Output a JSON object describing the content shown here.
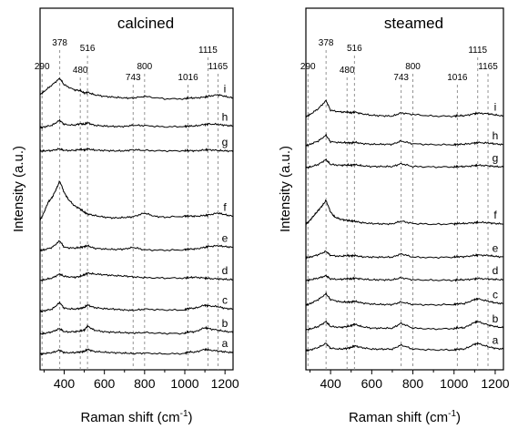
{
  "chart_data": [
    {
      "type": "line",
      "title": "calcined",
      "xlabel": "Raman shift (cm-1)",
      "ylabel": "Intensity (a.u.)",
      "xlim": [
        280,
        1240
      ],
      "x_ticks": [
        400,
        600,
        800,
        1000,
        1200
      ],
      "y_ticks": [],
      "grid": false,
      "legend": "none",
      "reference_lines": [
        {
          "x": 290,
          "label": "290"
        },
        {
          "x": 378,
          "label": "378"
        },
        {
          "x": 480,
          "label": "480"
        },
        {
          "x": 516,
          "label": "516"
        },
        {
          "x": 743,
          "label": "743"
        },
        {
          "x": 800,
          "label": "800"
        },
        {
          "x": 1016,
          "label": "1016"
        },
        {
          "x": 1115,
          "label": "1115"
        },
        {
          "x": 1165,
          "label": "1165"
        }
      ],
      "series": [
        {
          "name": "a",
          "offset": 0.0,
          "scale": 1.0,
          "x": [
            280,
            300,
            340,
            378,
            400,
            450,
            480,
            500,
            516,
            550,
            600,
            650,
            700,
            743,
            800,
            900,
            1000,
            1016,
            1050,
            1100,
            1115,
            1165,
            1200,
            1240
          ],
          "y": [
            0.0,
            0.1,
            0.2,
            0.5,
            0.2,
            0.2,
            0.3,
            0.35,
            0.6,
            0.35,
            0.25,
            0.2,
            0.15,
            0.1,
            0.15,
            0.05,
            0.1,
            0.3,
            0.25,
            0.6,
            0.55,
            0.4,
            0.3,
            0.2
          ]
        },
        {
          "name": "b",
          "offset": 1.0,
          "scale": 1.0,
          "x": [
            280,
            300,
            340,
            378,
            400,
            450,
            480,
            500,
            516,
            550,
            600,
            650,
            700,
            743,
            800,
            900,
            1000,
            1016,
            1050,
            1100,
            1115,
            1165,
            1200,
            1240
          ],
          "y": [
            0.0,
            0.1,
            0.3,
            0.7,
            0.3,
            0.3,
            0.4,
            0.5,
            1.0,
            0.5,
            0.3,
            0.25,
            0.2,
            0.15,
            0.2,
            0.1,
            0.1,
            0.3,
            0.3,
            0.8,
            0.7,
            0.5,
            0.35,
            0.25
          ]
        },
        {
          "name": "c",
          "offset": 2.0,
          "scale": 1.0,
          "x": [
            280,
            300,
            340,
            378,
            400,
            450,
            480,
            500,
            516,
            550,
            600,
            650,
            700,
            743,
            800,
            900,
            1000,
            1016,
            1050,
            1100,
            1115,
            1165,
            1200,
            1240
          ],
          "y": [
            0.1,
            0.2,
            0.4,
            1.2,
            0.5,
            0.4,
            0.5,
            0.6,
            0.9,
            0.6,
            0.45,
            0.4,
            0.3,
            0.25,
            0.4,
            0.3,
            0.3,
            0.5,
            0.5,
            0.9,
            0.8,
            0.7,
            0.5,
            0.4
          ]
        },
        {
          "name": "d",
          "offset": 3.0,
          "scale": 1.0,
          "x": [
            280,
            300,
            340,
            378,
            400,
            450,
            480,
            500,
            516,
            550,
            600,
            650,
            700,
            743,
            800,
            900,
            1000,
            1016,
            1050,
            1100,
            1115,
            1165,
            1200,
            1240
          ],
          "y": [
            0.0,
            0.1,
            0.3,
            0.8,
            0.5,
            0.4,
            0.5,
            0.7,
            0.9,
            0.8,
            0.7,
            0.6,
            0.55,
            0.45,
            0.35,
            0.3,
            0.3,
            0.35,
            0.4,
            0.3,
            0.25,
            0.2,
            0.15,
            0.1
          ]
        },
        {
          "name": "e",
          "offset": 4.0,
          "scale": 1.0,
          "x": [
            280,
            300,
            340,
            378,
            400,
            450,
            480,
            500,
            516,
            550,
            600,
            650,
            700,
            743,
            800,
            900,
            1000,
            1016,
            1050,
            1100,
            1115,
            1165,
            1200,
            1240
          ],
          "y": [
            0.2,
            0.3,
            0.6,
            1.4,
            0.6,
            0.5,
            0.6,
            0.7,
            0.8,
            0.5,
            0.4,
            0.35,
            0.4,
            0.6,
            0.3,
            0.25,
            0.3,
            0.4,
            0.4,
            0.6,
            0.7,
            0.8,
            0.7,
            0.6
          ]
        },
        {
          "name": "f",
          "offset": 5.3,
          "scale": 1.0,
          "x": [
            280,
            300,
            320,
            340,
            360,
            378,
            400,
            420,
            450,
            480,
            500,
            516,
            550,
            600,
            650,
            700,
            743,
            800,
            850,
            900,
            1000,
            1016,
            1050,
            1100,
            1115,
            1165,
            1200,
            1240
          ],
          "y": [
            0.0,
            1.0,
            2.2,
            2.8,
            3.8,
            4.8,
            3.4,
            2.6,
            1.8,
            1.4,
            1.0,
            0.8,
            0.6,
            0.4,
            0.3,
            0.35,
            0.45,
            0.9,
            0.5,
            0.4,
            0.5,
            0.55,
            0.5,
            0.6,
            0.65,
            0.9,
            0.7,
            0.5
          ]
        },
        {
          "name": "g",
          "offset": 9.2,
          "scale": 1.0,
          "x": [
            280,
            300,
            340,
            378,
            400,
            450,
            480,
            500,
            516,
            550,
            600,
            650,
            700,
            743,
            800,
            900,
            1000,
            1016,
            1050,
            1100,
            1115,
            1165,
            1200,
            1240
          ],
          "y": [
            0.1,
            0.15,
            0.2,
            0.4,
            0.2,
            0.2,
            0.35,
            0.25,
            0.4,
            0.25,
            0.2,
            0.15,
            0.15,
            0.3,
            0.2,
            0.15,
            0.15,
            0.2,
            0.15,
            0.25,
            0.3,
            0.2,
            0.15,
            0.1
          ]
        },
        {
          "name": "h",
          "offset": 10.1,
          "scale": 1.0,
          "x": [
            280,
            300,
            340,
            378,
            400,
            450,
            480,
            500,
            516,
            550,
            600,
            650,
            700,
            743,
            800,
            900,
            1000,
            1016,
            1050,
            1100,
            1115,
            1165,
            1200,
            1240
          ],
          "y": [
            0.2,
            0.3,
            0.5,
            1.1,
            0.6,
            0.5,
            0.7,
            0.6,
            0.8,
            0.5,
            0.4,
            0.35,
            0.35,
            0.5,
            0.45,
            0.3,
            0.35,
            0.4,
            0.4,
            0.6,
            0.65,
            0.6,
            0.5,
            0.4
          ]
        },
        {
          "name": "i",
          "offset": 11.4,
          "scale": 1.0,
          "x": [
            280,
            300,
            340,
            378,
            400,
            450,
            480,
            500,
            516,
            550,
            600,
            650,
            700,
            743,
            800,
            900,
            1000,
            1016,
            1050,
            1100,
            1115,
            1165,
            1200,
            1240
          ],
          "y": [
            1.0,
            1.4,
            2.2,
            3.0,
            2.2,
            1.6,
            1.5,
            1.2,
            1.3,
            1.0,
            0.8,
            0.7,
            0.6,
            0.6,
            0.8,
            0.5,
            0.5,
            0.6,
            0.6,
            0.7,
            0.8,
            1.0,
            0.8,
            0.6
          ]
        }
      ]
    },
    {
      "type": "line",
      "title": "steamed",
      "xlabel": "Raman shift (cm-1)",
      "ylabel": "Intensity (a.u.)",
      "xlim": [
        280,
        1240
      ],
      "x_ticks": [
        400,
        600,
        800,
        1000,
        1200
      ],
      "y_ticks": [],
      "grid": false,
      "legend": "none",
      "reference_lines": [
        {
          "x": 290,
          "label": "290"
        },
        {
          "x": 378,
          "label": "378"
        },
        {
          "x": 480,
          "label": "480"
        },
        {
          "x": 516,
          "label": "516"
        },
        {
          "x": 743,
          "label": "743"
        },
        {
          "x": 800,
          "label": "800"
        },
        {
          "x": 1016,
          "label": "1016"
        },
        {
          "x": 1115,
          "label": "1115"
        },
        {
          "x": 1165,
          "label": "1165"
        }
      ],
      "series": [
        {
          "name": "a",
          "offset": 0.0,
          "scale": 1.0,
          "x": [
            280,
            300,
            340,
            378,
            400,
            450,
            480,
            500,
            516,
            550,
            600,
            650,
            700,
            743,
            800,
            900,
            1000,
            1016,
            1050,
            1100,
            1115,
            1165,
            1200,
            1240
          ],
          "y": [
            0.1,
            0.2,
            0.5,
            1.0,
            0.4,
            0.3,
            0.4,
            0.5,
            0.7,
            0.5,
            0.3,
            0.3,
            0.3,
            0.8,
            0.3,
            0.2,
            0.2,
            0.3,
            0.3,
            0.9,
            1.0,
            0.6,
            0.4,
            0.3
          ]
        },
        {
          "name": "b",
          "offset": 1.0,
          "scale": 1.0,
          "x": [
            280,
            300,
            340,
            378,
            400,
            450,
            480,
            500,
            516,
            550,
            600,
            650,
            700,
            743,
            800,
            900,
            1000,
            1016,
            1050,
            1100,
            1115,
            1165,
            1200,
            1240
          ],
          "y": [
            0.1,
            0.2,
            0.5,
            1.1,
            0.5,
            0.4,
            0.5,
            0.6,
            0.8,
            0.5,
            0.3,
            0.3,
            0.3,
            0.9,
            0.3,
            0.2,
            0.25,
            0.35,
            0.35,
            1.0,
            1.1,
            0.7,
            0.5,
            0.35
          ]
        },
        {
          "name": "c",
          "offset": 2.0,
          "scale": 1.0,
          "x": [
            280,
            300,
            340,
            378,
            400,
            450,
            480,
            500,
            516,
            550,
            600,
            650,
            700,
            743,
            800,
            900,
            1000,
            1016,
            1050,
            1100,
            1115,
            1165,
            1200,
            1240
          ],
          "y": [
            0.2,
            0.4,
            0.9,
            1.6,
            0.9,
            0.6,
            0.6,
            0.6,
            0.7,
            0.5,
            0.35,
            0.3,
            0.3,
            0.6,
            0.3,
            0.25,
            0.3,
            0.4,
            0.4,
            0.9,
            1.0,
            0.7,
            0.5,
            0.4
          ]
        },
        {
          "name": "d",
          "offset": 3.0,
          "scale": 1.0,
          "x": [
            280,
            300,
            340,
            378,
            400,
            450,
            480,
            500,
            516,
            550,
            600,
            650,
            700,
            743,
            800,
            900,
            1000,
            1016,
            1050,
            1100,
            1115,
            1165,
            1200,
            1240
          ],
          "y": [
            0.1,
            0.2,
            0.4,
            0.7,
            0.3,
            0.25,
            0.35,
            0.3,
            0.4,
            0.3,
            0.2,
            0.2,
            0.2,
            0.45,
            0.2,
            0.15,
            0.15,
            0.2,
            0.2,
            0.3,
            0.35,
            0.3,
            0.25,
            0.2
          ]
        },
        {
          "name": "e",
          "offset": 4.0,
          "scale": 1.0,
          "x": [
            280,
            300,
            340,
            378,
            400,
            450,
            480,
            500,
            516,
            550,
            600,
            650,
            700,
            743,
            800,
            900,
            1000,
            1016,
            1050,
            1100,
            1115,
            1165,
            1200,
            1240
          ],
          "y": [
            0.2,
            0.3,
            0.6,
            1.0,
            0.5,
            0.4,
            0.5,
            0.45,
            0.5,
            0.35,
            0.3,
            0.3,
            0.3,
            0.7,
            0.3,
            0.25,
            0.3,
            0.35,
            0.35,
            0.5,
            0.55,
            0.5,
            0.4,
            0.3
          ]
        },
        {
          "name": "f",
          "offset": 5.0,
          "scale": 1.0,
          "x": [
            280,
            300,
            320,
            340,
            360,
            378,
            400,
            420,
            450,
            480,
            500,
            516,
            550,
            600,
            650,
            700,
            743,
            800,
            900,
            1000,
            1016,
            1050,
            1100,
            1115,
            1165,
            1200,
            1240
          ],
          "y": [
            0.3,
            0.8,
            1.4,
            2.0,
            2.6,
            3.2,
            1.8,
            1.2,
            0.9,
            0.8,
            0.7,
            0.7,
            0.5,
            0.4,
            0.35,
            0.35,
            0.7,
            0.4,
            0.3,
            0.35,
            0.4,
            0.4,
            0.5,
            0.55,
            0.5,
            0.4,
            0.35
          ]
        },
        {
          "name": "g",
          "offset": 7.6,
          "scale": 1.0,
          "x": [
            280,
            300,
            340,
            378,
            400,
            450,
            480,
            500,
            516,
            550,
            600,
            650,
            700,
            743,
            800,
            900,
            1000,
            1016,
            1050,
            1100,
            1115,
            1165,
            1200,
            1240
          ],
          "y": [
            0.2,
            0.3,
            0.6,
            1.2,
            0.6,
            0.5,
            0.55,
            0.5,
            0.6,
            0.45,
            0.35,
            0.35,
            0.35,
            0.7,
            0.35,
            0.3,
            0.3,
            0.35,
            0.35,
            0.45,
            0.5,
            0.45,
            0.35,
            0.3
          ]
        },
        {
          "name": "h",
          "offset": 8.6,
          "scale": 1.0,
          "x": [
            280,
            300,
            340,
            378,
            400,
            450,
            480,
            500,
            516,
            550,
            600,
            650,
            700,
            743,
            800,
            900,
            1000,
            1016,
            1050,
            1100,
            1115,
            1165,
            1200,
            1240
          ],
          "y": [
            0.2,
            0.4,
            0.8,
            1.5,
            0.7,
            0.6,
            0.6,
            0.55,
            0.65,
            0.5,
            0.4,
            0.4,
            0.4,
            0.8,
            0.45,
            0.35,
            0.35,
            0.4,
            0.4,
            0.55,
            0.6,
            0.55,
            0.45,
            0.35
          ]
        },
        {
          "name": "i",
          "offset": 10.0,
          "scale": 1.0,
          "x": [
            280,
            300,
            340,
            378,
            400,
            450,
            480,
            500,
            516,
            550,
            600,
            650,
            700,
            743,
            800,
            900,
            1000,
            1016,
            1050,
            1100,
            1115,
            1165,
            1200,
            1240
          ],
          "y": [
            0.4,
            0.7,
            1.4,
            2.4,
            1.2,
            1.0,
            1.0,
            0.9,
            1.0,
            0.8,
            0.6,
            0.55,
            0.5,
            0.9,
            0.7,
            0.5,
            0.5,
            0.55,
            0.55,
            0.8,
            0.85,
            0.8,
            0.65,
            0.5
          ]
        }
      ]
    }
  ]
}
